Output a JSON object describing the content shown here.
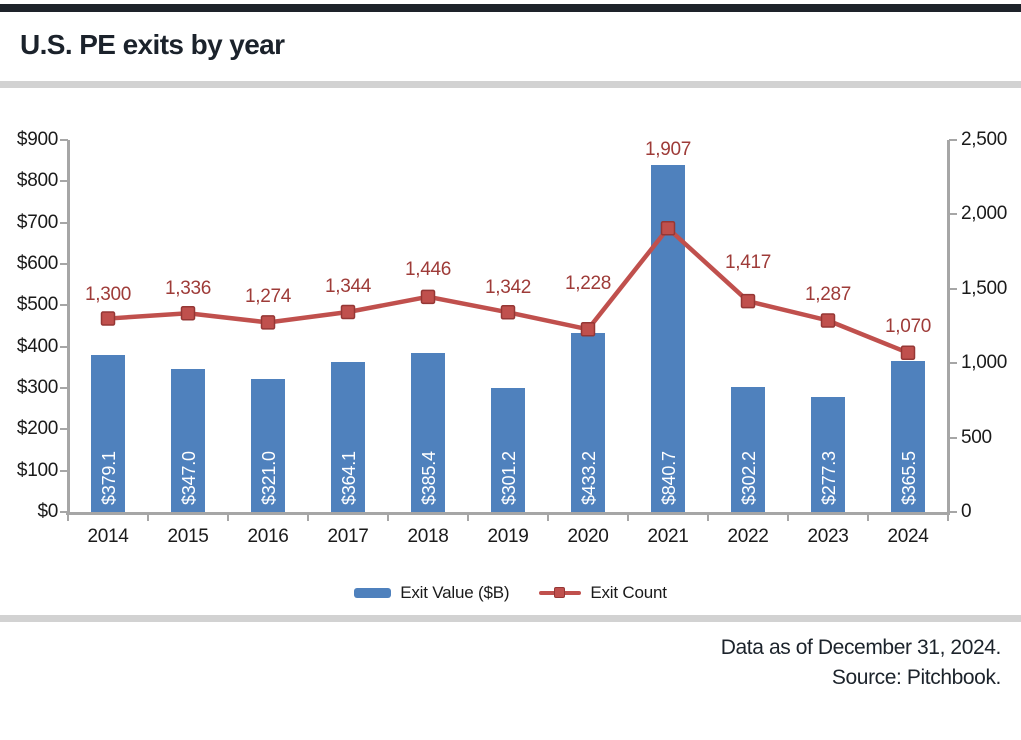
{
  "header": {
    "title": "U.S. PE exits by year"
  },
  "footer": {
    "line1": "Data as of December 31, 2024.",
    "line2": "Source: Pitchbook."
  },
  "legend": [
    {
      "label": "Exit Value ($B)",
      "type": "bar"
    },
    {
      "label": "Exit Count",
      "type": "line"
    }
  ],
  "colors": {
    "bar": "#4f81bd",
    "line": "#c0504d",
    "marker_border": "#953735",
    "count_label": "#9e3b38",
    "axis": "#a6a6a6",
    "text": "#1a1a1a",
    "divider": "#d2d2d2",
    "topbar": "#1e232a"
  },
  "chart_data": {
    "type": "bar+line combo",
    "title": "U.S. PE exits by year",
    "categories": [
      "2014",
      "2015",
      "2016",
      "2017",
      "2018",
      "2019",
      "2020",
      "2021",
      "2022",
      "2023",
      "2024"
    ],
    "series": [
      {
        "name": "Exit Value ($B)",
        "type": "bar",
        "axis": "left",
        "values": [
          379.1,
          347.0,
          321.0,
          364.1,
          385.4,
          301.2,
          433.2,
          840.7,
          302.2,
          277.3,
          365.5
        ],
        "labels": [
          "$379.1",
          "$347.0",
          "$321.0",
          "$364.1",
          "$385.4",
          "$301.2",
          "$433.2",
          "$840.7",
          "$302.2",
          "$277.3",
          "$365.5"
        ]
      },
      {
        "name": "Exit Count",
        "type": "line",
        "axis": "right",
        "values": [
          1300,
          1336,
          1274,
          1344,
          1446,
          1342,
          1228,
          1907,
          1417,
          1287,
          1070
        ],
        "labels": [
          "1,300",
          "1,336",
          "1,274",
          "1,344",
          "1,446",
          "1,342",
          "1,228",
          "1,907",
          "1,417",
          "1,287",
          "1,070"
        ],
        "label_dy": [
          24,
          24,
          25,
          25,
          27,
          24,
          45,
          78,
          38,
          25,
          26
        ]
      }
    ],
    "left_axis": {
      "min": 0,
      "max": 900,
      "ticks": [
        "$900",
        "$800",
        "$700",
        "$600",
        "$500",
        "$400",
        "$300",
        "$200",
        "$100",
        "$0"
      ]
    },
    "right_axis": {
      "min": 0,
      "max": 2500,
      "ticks": [
        "2,500",
        "2,000",
        "1,500",
        "1,000",
        "500",
        "0"
      ]
    },
    "grid": false,
    "legend_position": "bottom"
  }
}
